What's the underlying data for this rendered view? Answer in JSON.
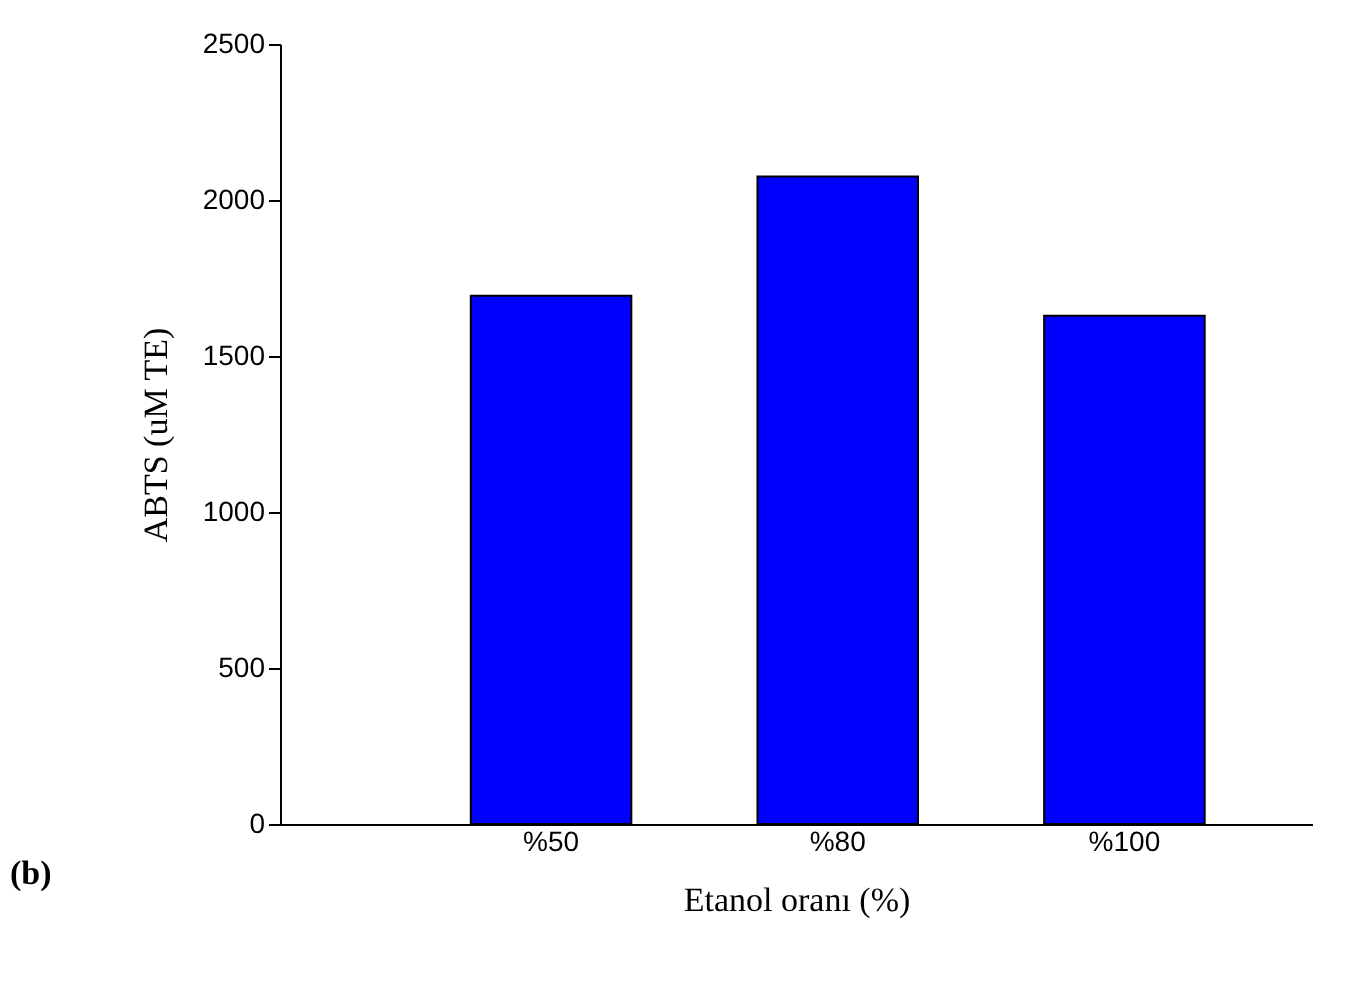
{
  "chart_data": {
    "type": "bar",
    "categories": [
      "%50",
      "%80",
      "%100"
    ],
    "values": [
      1693,
      2075,
      1629
    ],
    "color": "#0000ff",
    "ylim": [
      0,
      2500
    ],
    "yticks": [
      0,
      500,
      1000,
      1500,
      2000,
      2500
    ],
    "xlabel": "Etanol oranı (%)",
    "ylabel": "ABTS (uM TE)",
    "annotations": [
      "(b)"
    ],
    "grid": false
  }
}
